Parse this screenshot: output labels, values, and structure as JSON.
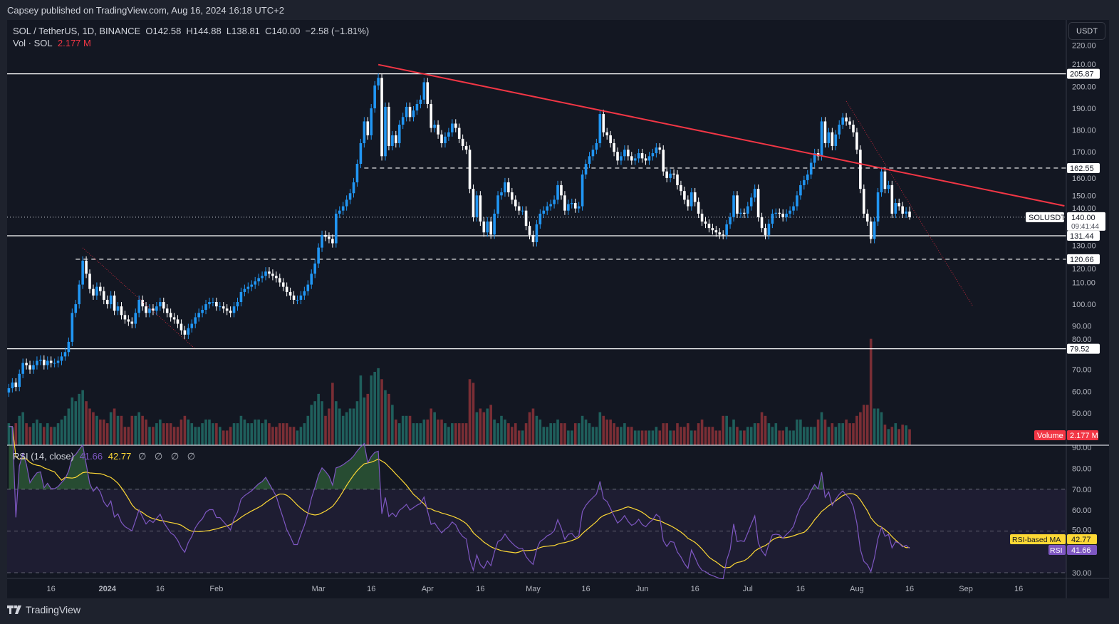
{
  "header": {
    "published": "Capsey published on TradingView.com, Aug 16, 2024 16:18 UTC+2"
  },
  "legend": {
    "symbol": "SOL / TetherUS, 1D, BINANCE",
    "open": "O142.58",
    "high": "H144.88",
    "low": "L138.81",
    "close": "C140.00",
    "change": "−2.58 (−1.81%)",
    "vol_label": "Vol · SOL",
    "vol_value": "2.177 M"
  },
  "rsi_legend": {
    "label": "RSI (14, close)",
    "rsi": "41.66",
    "ma": "42.77",
    "na": "∅ ∅ ∅ ∅"
  },
  "currency_button": "USDT",
  "footer": {
    "brand": "TradingView",
    "logo_icon": "tradingview-logo-icon"
  },
  "colors": {
    "up": "#2196f3",
    "down": "#ffffff",
    "vol_up": "#1f5f5c",
    "vol_down": "#7a2e35",
    "trendline": "#f23645",
    "rsi": "#7e57c2",
    "rsi_ma": "#fdd835",
    "bg": "#131722"
  },
  "chart_data": {
    "type": "candlestick",
    "symbol": "SOLUSDT",
    "timeframe": "1D",
    "price_range": [
      45,
      222
    ],
    "price_ticks": [
      "220.00",
      "210.00",
      "200.00",
      "190.00",
      "180.00",
      "170.00",
      "160.00",
      "150.00",
      "140.00",
      "130.00",
      "120.00",
      "110.00",
      "100.00",
      "90.00",
      "80.00",
      "70.00",
      "60.00",
      "50.00"
    ],
    "closes_by_month": [
      {
        "month": "2023-12",
        "from_day": 4,
        "close": [
          61.4,
          64,
          62,
          68,
          73,
          72,
          70,
          72,
          74,
          74.5,
          72,
          74,
          73,
          73,
          74,
          76,
          78,
          82.7,
          96,
          100,
          109,
          120,
          114,
          107,
          104,
          108,
          106,
          102
        ]
      },
      {
        "month": "2024-01",
        "from_day": 1,
        "close": [
          100,
          104,
          97,
          99,
          95,
          93,
          92,
          91,
          96,
          102,
          99,
          96,
          98,
          97,
          99,
          101,
          98,
          96,
          94,
          93,
          91,
          88,
          86,
          89,
          91,
          94,
          96,
          97.4,
          100,
          101,
          101
        ]
      },
      {
        "month": "2024-02",
        "from_day": 1,
        "close": [
          99,
          99,
          98,
          97,
          96,
          99,
          101,
          105.6,
          107,
          108,
          109,
          110.5,
          112,
          113,
          115,
          114,
          113,
          112,
          110,
          108,
          105.6,
          104,
          102,
          102,
          104,
          106,
          109,
          114,
          118.7
        ]
      },
      {
        "month": "2024-03",
        "from_day": 1,
        "close": [
          126,
          131.8,
          131,
          130,
          128,
          141.6,
          143,
          145,
          148,
          151,
          156,
          164.5,
          174,
          184,
          177.6,
          190,
          200.5,
          204,
          168,
          190.7,
          172.7,
          177.6,
          174,
          182.5,
          186,
          190.7,
          186,
          189,
          192,
          194,
          202
        ]
      },
      {
        "month": "2024-04",
        "from_day": 1,
        "close": [
          192,
          181,
          182.5,
          178,
          174,
          177,
          179,
          183,
          181,
          176,
          172.7,
          171,
          153,
          140,
          150,
          138,
          133,
          138,
          132,
          141.6,
          150,
          151.4,
          156,
          151.4,
          148,
          145,
          143,
          143,
          136,
          131.8
        ]
      },
      {
        "month": "2024-05",
        "from_day": 1,
        "close": [
          128.5,
          136.7,
          141.6,
          143,
          145,
          146,
          148,
          154.7,
          150,
          143,
          146,
          146.5,
          144,
          145,
          159.6,
          164.5,
          168,
          171,
          174,
          187.4,
          179,
          177.6,
          174,
          170,
          166,
          168,
          171,
          168,
          166,
          167,
          169.4
        ]
      },
      {
        "month": "2024-06",
        "from_day": 1,
        "close": [
          167,
          166,
          168,
          169.4,
          172,
          171,
          161,
          158,
          160,
          159.6,
          154.7,
          152,
          148,
          145,
          151.4,
          147,
          141.6,
          138,
          137,
          135,
          134,
          133,
          132,
          131.8,
          136.7,
          140,
          150,
          141.6,
          142,
          141.6
        ]
      },
      {
        "month": "2024-07",
        "from_day": 1,
        "close": [
          145,
          149,
          153,
          140,
          135,
          131.8,
          137,
          141.6,
          142,
          141.6,
          140,
          141.6,
          143,
          145,
          150,
          154.7,
          157,
          159.6,
          165,
          169.4,
          168,
          184,
          174,
          179,
          172.7,
          178,
          182.5,
          185.8,
          184,
          182.5,
          179
        ]
      },
      {
        "month": "2024-08",
        "from_day": 1,
        "close": [
          171,
          153,
          141.6,
          138,
          130,
          138,
          151.4,
          161,
          153,
          154.7,
          141.6,
          146.5,
          145,
          141.6,
          142.6,
          140
        ]
      }
    ],
    "last_candle": {
      "open": 142.58,
      "high": 144.88,
      "low": 138.81,
      "close": 140.0
    },
    "volume_millions_by_month": [
      [
        3,
        2.5,
        3,
        4,
        4.5,
        3,
        2.5,
        3,
        3.5,
        3,
        2.5,
        3,
        2.5,
        2.5,
        3,
        3.5,
        4,
        5,
        6.5,
        6,
        7,
        7.5,
        6,
        5,
        4.5,
        4,
        3.5,
        3.5
      ],
      [
        3,
        4.5,
        5,
        4,
        4,
        2.5,
        2.5,
        4,
        4,
        4.5,
        4,
        3.5,
        2.5,
        2.5,
        3,
        3.5,
        3,
        3,
        3,
        2.5,
        2.5,
        3.5,
        4,
        3.5,
        3,
        2.5,
        2.5,
        3,
        3.5,
        3.5,
        3
      ],
      [
        3,
        2.5,
        2,
        2,
        2.5,
        3,
        3,
        4,
        3.5,
        3,
        3,
        3.5,
        3.5,
        3,
        3.5,
        3,
        2.5,
        2.5,
        3,
        3,
        3,
        2.5,
        2.5,
        2,
        2.5,
        3,
        4,
        5.5,
        6
      ],
      [
        7,
        6,
        4,
        5,
        8.5,
        6,
        5,
        4,
        4.5,
        5,
        5,
        6,
        9.5,
        6.5,
        7,
        9.5,
        10,
        10.5,
        9,
        7.5,
        7,
        5.5,
        3.5,
        3,
        4,
        4,
        4,
        3,
        3,
        3,
        3.5
      ],
      [
        3.5,
        5,
        4.5,
        3.5,
        3.5,
        3,
        2.5,
        3,
        3,
        3,
        3,
        3,
        9,
        8.5,
        4.5,
        5,
        4.5,
        5,
        5.5,
        3.5,
        3,
        4,
        3.5,
        3,
        2.5,
        3,
        2,
        2,
        3,
        4.5
      ],
      [
        5,
        4,
        3.5,
        2.5,
        2.5,
        3,
        3,
        3.5,
        3,
        3,
        2,
        2,
        3,
        3,
        4,
        3.5,
        3,
        2.5,
        2.5,
        4.5,
        4,
        3.5,
        3.5,
        3,
        2.5,
        2.5,
        3,
        2.5,
        2.5,
        2,
        2
      ],
      [
        2,
        2,
        2,
        2,
        2.5,
        2,
        3,
        3,
        2,
        2,
        3,
        2.5,
        2.5,
        3,
        2,
        2,
        3,
        3.5,
        2.5,
        2.5,
        2.5,
        2,
        2,
        4,
        4,
        2.5,
        3.5,
        2.5,
        2,
        2
      ],
      [
        2.5,
        2.5,
        3,
        3,
        4.5,
        4,
        3,
        2.5,
        3,
        2,
        2,
        2.5,
        2,
        2,
        3.5,
        3.5,
        2.5,
        2.5,
        2.5,
        2.5,
        3.5,
        4.5,
        3.5,
        2.5,
        3,
        2.5,
        3,
        3,
        3.5,
        3,
        3
      ],
      [
        4,
        4.5,
        5.5,
        5.5,
        14.5,
        5,
        5,
        4.5,
        2.8,
        2.2,
        2.5,
        3,
        2.2,
        2.8,
        2.7,
        2.177
      ]
    ],
    "volume_label": "Volume",
    "volume_last": "2.177 M",
    "horizontal_levels": [
      {
        "price": 205.87,
        "label": "205.87",
        "style": "solid"
      },
      {
        "price": 162.55,
        "label": "162.55",
        "style": "dashed",
        "from": "2024-03-14"
      },
      {
        "price": 131.44,
        "label": "131.44",
        "style": "solid"
      },
      {
        "price": 120.66,
        "label": "120.66",
        "style": "dashed",
        "from": "2023-12-23"
      },
      {
        "price": 79.52,
        "label": "79.52",
        "style": "solid"
      }
    ],
    "current_price": {
      "label": "140.00",
      "countdown": "09:41:44",
      "symbol_tag": "SOLUSDT",
      "price": 140.0
    },
    "trendlines": [
      {
        "style": "solid",
        "from": {
          "date": "2024-03-18",
          "price": 210.1
        },
        "to": {
          "date": "2024-09-29",
          "price": 145.2
        }
      },
      {
        "style": "dotted",
        "from": {
          "date": "2023-12-25",
          "price": 125.9
        },
        "to": {
          "date": "2024-01-26",
          "price": 79.4
        }
      },
      {
        "style": "dotted",
        "from": {
          "date": "2024-07-29",
          "price": 193.3
        },
        "to": {
          "date": "2024-09-03",
          "price": 99
        }
      }
    ],
    "time_ticks": [
      {
        "date": "2023-12-16",
        "label": "16"
      },
      {
        "date": "2024-01-01",
        "label": "2024",
        "bold": true
      },
      {
        "date": "2024-01-16",
        "label": "16"
      },
      {
        "date": "2024-02-01",
        "label": "Feb"
      },
      {
        "date": "2024-03-01",
        "label": "Mar"
      },
      {
        "date": "2024-03-16",
        "label": "16"
      },
      {
        "date": "2024-04-01",
        "label": "Apr"
      },
      {
        "date": "2024-04-16",
        "label": "16"
      },
      {
        "date": "2024-05-01",
        "label": "May"
      },
      {
        "date": "2024-05-16",
        "label": "16"
      },
      {
        "date": "2024-06-01",
        "label": "Jun"
      },
      {
        "date": "2024-06-16",
        "label": "16"
      },
      {
        "date": "2024-07-01",
        "label": "Jul"
      },
      {
        "date": "2024-07-16",
        "label": "16"
      },
      {
        "date": "2024-08-01",
        "label": "Aug"
      },
      {
        "date": "2024-08-16",
        "label": "16"
      },
      {
        "date": "2024-09-01",
        "label": "Sep"
      },
      {
        "date": "2024-09-16",
        "label": "16"
      }
    ],
    "rsi": {
      "length": 14,
      "ma_length": 14,
      "source": "close",
      "ticks": [
        "90.00",
        "80.00",
        "70.00",
        "60.00",
        "50.00",
        "30.00"
      ],
      "bands": [
        70,
        50,
        30
      ],
      "rsi_tag": "RSI",
      "rsi_value": "41.66",
      "ma_tag": "RSI-based MA",
      "ma_value": "42.77"
    }
  }
}
